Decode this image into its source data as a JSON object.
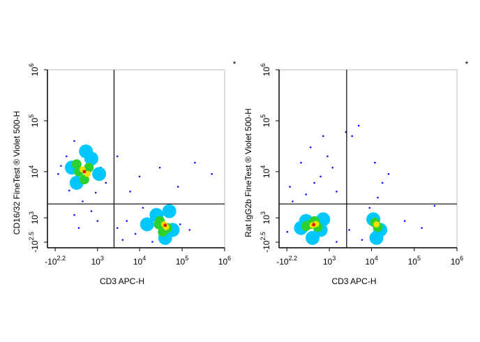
{
  "chart_data": [
    {
      "type": "scatter",
      "xlabel": "CD3 APC-H",
      "ylabel": "CD16/32  FineTest ® Violet 500-H",
      "note": "*",
      "xscale": "asinh",
      "xcofactor": 330,
      "yscale": "asinh",
      "ycofactor": 1100,
      "xlim": [
        -330,
        1000000
      ],
      "ylim": [
        -620,
        1000000
      ],
      "xticks": [
        {
          "value": -158,
          "label": "-10",
          "exponent": "2.2"
        },
        {
          "value": 1000,
          "label": "10",
          "exponent": "3"
        },
        {
          "value": 10000,
          "label": "10",
          "exponent": "4"
        },
        {
          "value": 100000,
          "label": "10",
          "exponent": "5"
        },
        {
          "value": 1000000,
          "label": "10",
          "exponent": "6"
        }
      ],
      "yticks": [
        {
          "value": -316,
          "label": "-10",
          "exponent": "2.5"
        },
        {
          "value": 1000,
          "label": "10",
          "exponent": "3"
        },
        {
          "value": 10000,
          "label": "10",
          "exponent": "4"
        },
        {
          "value": 100000,
          "label": "10",
          "exponent": "5"
        },
        {
          "value": 1000000,
          "label": "10",
          "exponent": "6"
        }
      ],
      "gate": {
        "x": 2500,
        "y": 2200
      },
      "series": [
        {
          "color": "#1010ff",
          "x": [
            -100,
            50,
            200,
            600,
            1200,
            1600,
            900,
            100,
            -50,
            400,
            700,
            200,
            1000,
            300,
            3000,
            5000,
            12000,
            60000,
            90000,
            20000,
            8000,
            150000,
            4000,
            3000,
            10000,
            30000,
            200000,
            80000,
            500000,
            6000
          ],
          "y": [
            9000,
            20000,
            40000,
            30000,
            12000,
            6000,
            3800,
            4200,
            13000,
            2500,
            1500,
            1200,
            800,
            400,
            400,
            800,
            1800,
            1500,
            600,
            -300,
            100,
            300,
            -200,
            20000,
            8000,
            12000,
            15000,
            5000,
            9000,
            4000
          ]
        },
        {
          "color": "#00c8ff",
          "x": [
            150,
            700,
            1100,
            250,
            500,
            25000,
            60000,
            40000,
            15000,
            50000
          ],
          "y": [
            12000,
            18000,
            9000,
            6000,
            25000,
            1200,
            300,
            -100,
            600,
            1500
          ]
        },
        {
          "color": "#2ed02e",
          "x": [
            300,
            600,
            450,
            250,
            30000,
            45000,
            35000,
            28000
          ],
          "y": [
            10000,
            12000,
            7000,
            14000,
            800,
            400,
            200,
            600
          ]
        },
        {
          "color": "#f0e000",
          "x": [
            400,
            550,
            38000,
            42000
          ],
          "y": [
            11000,
            9000,
            600,
            450
          ]
        },
        {
          "color": "#e02000",
          "x": [
            450,
            40000
          ],
          "y": [
            10000,
            550
          ]
        }
      ]
    },
    {
      "type": "scatter",
      "xlabel": "CD3 APC-H",
      "ylabel": "Rat IgG2b  FineTest ® Violet 500-H",
      "note": "*",
      "xscale": "asinh",
      "xcofactor": 330,
      "yscale": "asinh",
      "ycofactor": 1100,
      "xlim": [
        -330,
        1000000
      ],
      "ylim": [
        -620,
        1000000
      ],
      "xticks": [
        {
          "value": -158,
          "label": "-10",
          "exponent": "2.2"
        },
        {
          "value": 1000,
          "label": "10",
          "exponent": "3"
        },
        {
          "value": 10000,
          "label": "10",
          "exponent": "4"
        },
        {
          "value": 100000,
          "label": "10",
          "exponent": "5"
        },
        {
          "value": 1000000,
          "label": "10",
          "exponent": "6"
        }
      ],
      "yticks": [
        {
          "value": -316,
          "label": "-10",
          "exponent": "2.5"
        },
        {
          "value": 1000,
          "label": "10",
          "exponent": "3"
        },
        {
          "value": 10000,
          "label": "10",
          "exponent": "4"
        },
        {
          "value": 100000,
          "label": "10",
          "exponent": "5"
        },
        {
          "value": 1000000,
          "label": "10",
          "exponent": "6"
        }
      ],
      "gate": {
        "x": 2600,
        "y": 2200
      },
      "series": [
        {
          "color": "#1010ff",
          "x": [
            -100,
            100,
            300,
            600,
            900,
            1500,
            200,
            700,
            1200,
            -50,
            400,
            2500,
            5000,
            3500,
            12000,
            18000,
            14000,
            25000,
            3000,
            6000,
            60000,
            300000,
            150000,
            1500,
            -150,
            9000
          ],
          "y": [
            5000,
            15000,
            30000,
            8000,
            20000,
            4000,
            3500,
            50000,
            12000,
            2500,
            6000,
            60000,
            80000,
            50000,
            15000,
            6000,
            3000,
            9000,
            300,
            -200,
            800,
            2000,
            400,
            -300,
            200,
            1800
          ]
        },
        {
          "color": "#00c8ff",
          "x": [
            200,
            600,
            350,
            100,
            700,
            11000,
            16000,
            13000
          ],
          "y": [
            800,
            300,
            -100,
            400,
            900,
            900,
            300,
            -100
          ]
        },
        {
          "color": "#2ed02e",
          "x": [
            300,
            500,
            200,
            400,
            12000,
            14000
          ],
          "y": [
            600,
            450,
            500,
            800,
            700,
            450
          ]
        },
        {
          "color": "#f0e000",
          "x": [
            350,
            450,
            13000
          ],
          "y": [
            550,
            620,
            600
          ]
        },
        {
          "color": "#e02000",
          "x": [
            380
          ],
          "y": [
            580
          ]
        }
      ]
    }
  ]
}
